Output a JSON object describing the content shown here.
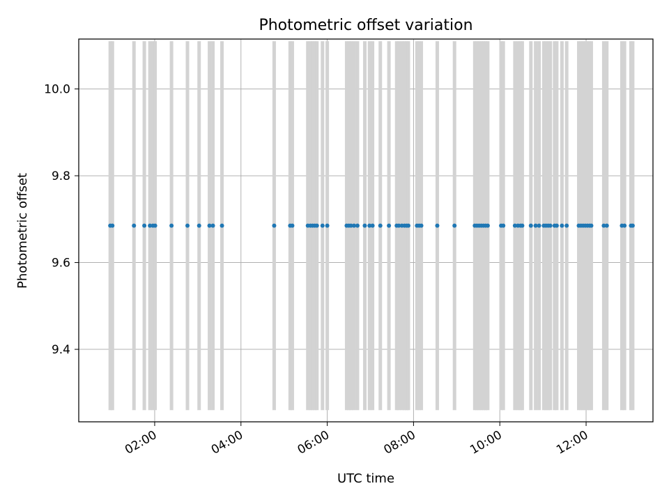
{
  "chart_data": {
    "type": "scatter",
    "title": "Photometric offset variation",
    "xlabel": "UTC time",
    "ylabel": "Photometric offset",
    "x_unit": "hours (UTC)",
    "xlim": [
      0.24,
      13.55
    ],
    "ylim": [
      9.233,
      10.115
    ],
    "grid": true,
    "x_ticks": [
      {
        "value": 2,
        "label": "02:00"
      },
      {
        "value": 4,
        "label": "04:00"
      },
      {
        "value": 6,
        "label": "06:00"
      },
      {
        "value": 8,
        "label": "08:00"
      },
      {
        "value": 10,
        "label": "10:00"
      },
      {
        "value": 12,
        "label": "12:00"
      }
    ],
    "y_ticks": [
      {
        "value": 9.4,
        "label": "9.4"
      },
      {
        "value": 9.6,
        "label": "9.6"
      },
      {
        "value": 9.8,
        "label": "9.8"
      },
      {
        "value": 10.0,
        "label": "10.0"
      }
    ],
    "error_bar_range": [
      9.26,
      10.11
    ],
    "colors": {
      "points": "#1f77b4",
      "error_bars": "#d3d3d3",
      "grid": "#b0b0b0",
      "axes": "#000000"
    },
    "series": [
      {
        "name": "Photometric offset",
        "y": 9.685,
        "x": [
          0.97,
          1.02,
          1.52,
          1.76,
          1.89,
          1.96,
          2.01,
          2.39,
          2.76,
          3.03,
          3.27,
          3.35,
          3.56,
          4.77,
          5.14,
          5.19,
          5.55,
          5.61,
          5.66,
          5.71,
          5.76,
          5.89,
          6.0,
          6.45,
          6.5,
          6.55,
          6.62,
          6.7,
          6.87,
          6.98,
          7.05,
          7.23,
          7.43,
          7.61,
          7.66,
          7.73,
          7.79,
          7.84,
          7.88,
          8.08,
          8.13,
          8.18,
          8.55,
          8.95,
          9.42,
          9.47,
          9.52,
          9.57,
          9.62,
          9.67,
          9.72,
          10.03,
          10.08,
          10.35,
          10.42,
          10.48,
          10.52,
          10.72,
          10.83,
          10.91,
          11.02,
          11.07,
          11.12,
          11.17,
          11.27,
          11.32,
          11.44,
          11.55,
          11.83,
          11.88,
          11.93,
          11.98,
          12.03,
          12.08,
          12.12,
          12.41,
          12.48,
          12.83,
          12.89,
          13.04,
          13.08
        ]
      }
    ]
  }
}
